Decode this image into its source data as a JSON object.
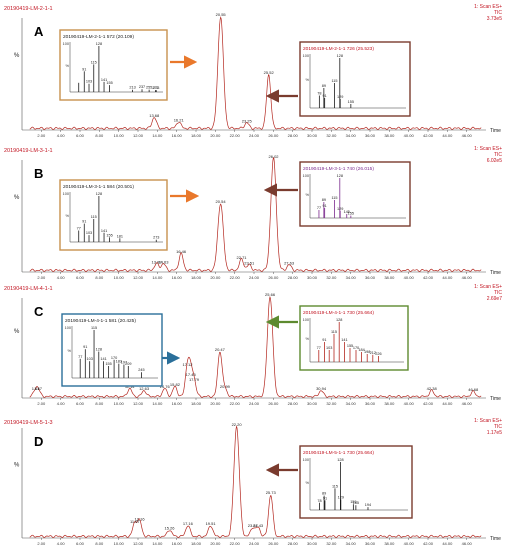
{
  "chart_data": [
    {
      "type": "line",
      "panel_letter": "A",
      "file_label": "20190419-LM-2-1-1",
      "scan_label": "1: Scan ES+",
      "mode_label": "TIC",
      "intensity_label": "3.73e5",
      "ylabel": "%",
      "xlabel": "Time",
      "xlim": [
        0,
        48
      ],
      "ylim": [
        0,
        100
      ],
      "x_ticks": [
        "2.00",
        "4.00",
        "6.00",
        "8.00",
        "10.00",
        "12.00",
        "14.00",
        "16.00",
        "18.00",
        "20.00",
        "22.00",
        "24.00",
        "26.00",
        "28.00",
        "30.00",
        "32.00",
        "34.00",
        "36.00",
        "38.00",
        "40.00",
        "42.00",
        "44.00",
        "46.00"
      ],
      "series": [
        {
          "x": [
            13.68,
            16.21,
            20.55,
            23.25,
            25.52
          ],
          "values": [
            10,
            6,
            100,
            5,
            48
          ]
        }
      ],
      "peak_labels": [
        "13.68",
        "16.21",
        "20.55",
        "23.25",
        "25.52"
      ],
      "insets": [
        {
          "title": "20190419-LM-2-1-1 572 (20.109)",
          "arrow": "orange",
          "peaks": [
            {
              "mz": 77,
              "h": 20
            },
            {
              "mz": 91,
              "h": 45,
              "label": "91"
            },
            {
              "mz": 103,
              "h": 18,
              "label": "103"
            },
            {
              "mz": 115,
              "h": 60,
              "label": "115"
            },
            {
              "mz": 128,
              "h": 100,
              "label": "128"
            },
            {
              "mz": 141,
              "h": 22,
              "label": "141"
            },
            {
              "mz": 155,
              "h": 15,
              "label": "155"
            },
            {
              "mz": 213,
              "h": 5,
              "label": "213"
            },
            {
              "mz": 237,
              "h": 6,
              "label": "237"
            },
            {
              "mz": 255,
              "h": 5,
              "label": "255"
            },
            {
              "mz": 271,
              "h": 4,
              "label": "271"
            },
            {
              "mz": 273,
              "h": 4,
              "label": "273"
            }
          ]
        },
        {
          "title": "20190419-LM-2-1-1 726 (25.523)",
          "arrow": "brown",
          "peaks": [
            {
              "mz": 78,
              "h": 25,
              "label": "78"
            },
            {
              "mz": 89,
              "h": 40,
              "label": "89"
            },
            {
              "mz": 91,
              "h": 20,
              "label": "91"
            },
            {
              "mz": 115,
              "h": 50,
              "label": "115"
            },
            {
              "mz": 128,
              "h": 100,
              "label": "128"
            },
            {
              "mz": 129,
              "h": 18,
              "label": "129"
            },
            {
              "mz": 155,
              "h": 8,
              "label": "155"
            }
          ]
        }
      ]
    },
    {
      "type": "line",
      "panel_letter": "B",
      "file_label": "20190419-LM-3-1-1",
      "scan_label": "1: Scan ES+",
      "mode_label": "TIC",
      "intensity_label": "6.02e5",
      "ylabel": "%",
      "xlabel": "Time",
      "xlim": [
        0,
        48
      ],
      "ylim": [
        0,
        100
      ],
      "x_ticks": [
        "2.00",
        "4.00",
        "6.00",
        "8.00",
        "10.00",
        "12.00",
        "14.00",
        "16.00",
        "18.00",
        "20.00",
        "22.00",
        "24.00",
        "26.00",
        "28.00",
        "30.00",
        "32.00",
        "34.00",
        "36.00",
        "38.00",
        "40.00",
        "42.00",
        "44.00",
        "46.00"
      ],
      "series": [
        {
          "x": [
            13.92,
            14.63,
            16.46,
            20.54,
            22.71,
            23.51,
            26.02,
            27.63
          ],
          "values": [
            6,
            6,
            15,
            60,
            10,
            5,
            100,
            5
          ]
        }
      ],
      "peak_labels": [
        "13.92",
        "14.63",
        "16.46",
        "20.54",
        "22.71",
        "23.51",
        "26.02",
        "27.63"
      ],
      "insets": [
        {
          "title": "20190419-LM-3-1-1 584 (20.501)",
          "arrow": "orange",
          "peaks": [
            {
              "mz": 77,
              "h": 25,
              "label": "77"
            },
            {
              "mz": 91,
              "h": 40,
              "label": "91"
            },
            {
              "mz": 103,
              "h": 15,
              "label": "103"
            },
            {
              "mz": 115,
              "h": 50,
              "label": "115"
            },
            {
              "mz": 128,
              "h": 100,
              "label": "128"
            },
            {
              "mz": 141,
              "h": 20,
              "label": "141"
            },
            {
              "mz": 155,
              "h": 10,
              "label": "155"
            },
            {
              "mz": 181,
              "h": 8,
              "label": "181"
            },
            {
              "mz": 273,
              "h": 5,
              "label": "273"
            }
          ]
        },
        {
          "title": "20190419-LM-3-1-1 740 (26.015)",
          "arrow": "brown",
          "peaks": [
            {
              "mz": 77,
              "h": 20,
              "label": "77"
            },
            {
              "mz": 89,
              "h": 40,
              "label": "89"
            },
            {
              "mz": 91,
              "h": 25,
              "label": "91"
            },
            {
              "mz": 115,
              "h": 45,
              "label": "115"
            },
            {
              "mz": 128,
              "h": 100,
              "label": "128"
            },
            {
              "mz": 129,
              "h": 18,
              "label": "129"
            },
            {
              "mz": 145,
              "h": 10,
              "label": "145"
            },
            {
              "mz": 155,
              "h": 6,
              "label": "155"
            }
          ]
        }
      ]
    },
    {
      "type": "line",
      "panel_letter": "C",
      "file_label": "20190419-LM-4-1-1",
      "scan_label": "1: Scan ES+",
      "mode_label": "TIC",
      "intensity_label": "2.69e7",
      "ylabel": "%",
      "xlabel": "Time",
      "xlim": [
        0,
        48
      ],
      "ylim": [
        0,
        100
      ],
      "x_ticks": [
        "2.00",
        "4.00",
        "6.00",
        "8.00",
        "10.00",
        "12.00",
        "14.00",
        "16.00",
        "18.00",
        "20.00",
        "22.00",
        "24.00",
        "26.00",
        "28.00",
        "30.00",
        "32.00",
        "34.00",
        "36.00",
        "38.00",
        "40.00",
        "42.00",
        "44.00",
        "46.00"
      ],
      "series": [
        {
          "x": [
            1.41,
            1.67,
            11.14,
            12.63,
            14.76,
            15.82,
            17.12,
            17.45,
            17.79,
            20.47,
            20.99,
            25.66,
            30.94,
            42.38,
            46.68
          ],
          "values": [
            6,
            6,
            8,
            6,
            8,
            10,
            30,
            20,
            15,
            45,
            8,
            100,
            6,
            6,
            5
          ]
        }
      ],
      "peak_labels": [
        "1.41",
        "1.67",
        "11.14",
        "12.63",
        "14.76",
        "15.82",
        "17.12",
        "17.45",
        "17.79",
        "20.47",
        "20.99",
        "25.66",
        "30.94",
        "42.38",
        "46.68"
      ],
      "insets": [
        {
          "title": "20190419-LM-4-1-1 581 (20.425)",
          "arrow": "blue",
          "peaks": [
            {
              "mz": 77,
              "h": 40,
              "label": "77"
            },
            {
              "mz": 91,
              "h": 60,
              "label": "91"
            },
            {
              "mz": 103,
              "h": 35,
              "label": "103"
            },
            {
              "mz": 115,
              "h": 100,
              "label": "115"
            },
            {
              "mz": 128,
              "h": 55,
              "label": "128"
            },
            {
              "mz": 141,
              "h": 35,
              "label": "141"
            },
            {
              "mz": 155,
              "h": 25,
              "label": "155"
            },
            {
              "mz": 170,
              "h": 38,
              "label": "170"
            },
            {
              "mz": 183,
              "h": 30,
              "label": "183"
            },
            {
              "mz": 197,
              "h": 28,
              "label": "197"
            },
            {
              "mz": 209,
              "h": 25,
              "label": "209"
            },
            {
              "mz": 245,
              "h": 12,
              "label": "245"
            }
          ]
        },
        {
          "title": "20190419-LM-4-1-1 730 (25.664)",
          "arrow": "green",
          "peaks": [
            {
              "mz": 77,
              "h": 30,
              "label": "77"
            },
            {
              "mz": 91,
              "h": 50,
              "label": "91"
            },
            {
              "mz": 103,
              "h": 30,
              "label": "103"
            },
            {
              "mz": 115,
              "h": 70,
              "label": "115"
            },
            {
              "mz": 128,
              "h": 100,
              "label": "128"
            },
            {
              "mz": 141,
              "h": 50,
              "label": "141"
            },
            {
              "mz": 155,
              "h": 35,
              "label": "155"
            },
            {
              "mz": 170,
              "h": 30,
              "label": "170"
            },
            {
              "mz": 184,
              "h": 25,
              "label": "184"
            },
            {
              "mz": 198,
              "h": 20,
              "label": "198"
            },
            {
              "mz": 212,
              "h": 18,
              "label": "212"
            },
            {
              "mz": 226,
              "h": 15,
              "label": "226"
            }
          ]
        }
      ]
    },
    {
      "type": "line",
      "panel_letter": "D",
      "file_label": "20190419-LM-5-1-3",
      "scan_label": "1: Scan ES+",
      "mode_label": "TIC",
      "intensity_label": "1.17e5",
      "ylabel": "%",
      "xlabel": "Time",
      "xlim": [
        0,
        48
      ],
      "ylim": [
        0,
        100
      ],
      "x_ticks": [
        "2.00",
        "4.00",
        "6.00",
        "8.00",
        "10.00",
        "12.00",
        "14.00",
        "16.00",
        "18.00",
        "20.00",
        "22.00",
        "24.00",
        "26.00",
        "28.00",
        "30.00",
        "32.00",
        "34.00",
        "36.00",
        "38.00",
        "40.00",
        "42.00",
        "44.00",
        "46.00"
      ],
      "series": [
        {
          "x": [
            11.67,
            12.16,
            15.26,
            17.16,
            19.51,
            22.2,
            23.87,
            24.43,
            25.73
          ],
          "values": [
            12,
            14,
            6,
            10,
            10,
            100,
            8,
            8,
            38
          ]
        }
      ],
      "peak_labels": [
        "11.67",
        "12.16",
        "15.26",
        "17.16",
        "19.51",
        "22.20",
        "23.87",
        "24.43",
        "25.73"
      ],
      "insets": [
        {
          "title": "20190419-LM-5-1-1 730 (25.664)",
          "arrow": "brown",
          "peaks": [
            {
              "mz": 78,
              "h": 15,
              "label": "78"
            },
            {
              "mz": 89,
              "h": 30,
              "label": "89"
            },
            {
              "mz": 91,
              "h": 20,
              "label": "91"
            },
            {
              "mz": 115,
              "h": 45,
              "label": "115"
            },
            {
              "mz": 128,
              "h": 100,
              "label": "128"
            },
            {
              "mz": 129,
              "h": 22,
              "label": "129"
            },
            {
              "mz": 159,
              "h": 12,
              "label": "159"
            },
            {
              "mz": 165,
              "h": 10,
              "label": "165"
            },
            {
              "mz": 194,
              "h": 6,
              "label": "194"
            }
          ]
        }
      ]
    }
  ]
}
